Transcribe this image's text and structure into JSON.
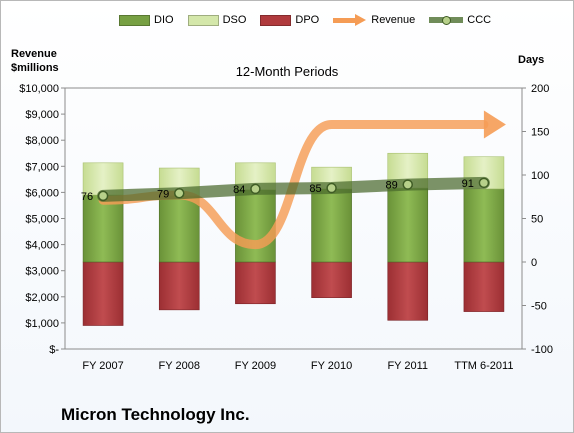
{
  "chart_data": {
    "type": "bar",
    "subtitle": "12-Month Periods",
    "footer_title": "Micron Technology Inc.",
    "left_axis_title": [
      "Revenue",
      "$millions"
    ],
    "right_axis_title": "Days",
    "categories": [
      "FY 2007",
      "FY 2008",
      "FY 2009",
      "FY 2010",
      "FY 2011",
      "TTM 6-2011"
    ],
    "left_axis": {
      "ylim": [
        0,
        10000
      ],
      "ticks": [
        "$-",
        "$1,000",
        "$2,000",
        "$3,000",
        "$4,000",
        "$5,000",
        "$6,000",
        "$7,000",
        "$8,000",
        "$9,000",
        "$10,000"
      ]
    },
    "right_axis": {
      "ylim": [
        -100,
        200
      ],
      "tick_values": [
        -100,
        -50,
        0,
        50,
        100,
        150,
        200
      ],
      "ticks": [
        "-100",
        "-50",
        "0",
        "50",
        "100",
        "150",
        "200"
      ]
    },
    "legend": [
      "DIO",
      "DSO",
      "DPO",
      "Revenue",
      "CCC"
    ],
    "series": [
      {
        "name": "DIO",
        "type": "stacked-bar",
        "axis": "right",
        "color": "#77a043",
        "values": [
          77,
          76,
          83,
          84,
          85,
          84
        ]
      },
      {
        "name": "DSO",
        "type": "stacked-bar",
        "axis": "right",
        "color": "#d4e7aa",
        "values": [
          37,
          32,
          31,
          25,
          40,
          37
        ]
      },
      {
        "name": "DPO",
        "type": "stacked-bar-negative",
        "axis": "right",
        "color": "#b03a3d",
        "values": [
          -73,
          -55,
          -48,
          -41,
          -67,
          -57
        ]
      },
      {
        "name": "Revenue",
        "type": "arrow-line",
        "axis": "left",
        "color": "#f59c55",
        "values": [
          5700,
          5900,
          4000,
          8600,
          8600,
          8600
        ]
      },
      {
        "name": "CCC",
        "type": "line",
        "axis": "right",
        "color": "#4c6f2f",
        "values": [
          76,
          79,
          84,
          85,
          89,
          91
        ]
      }
    ],
    "data_labels": [
      "76",
      "79",
      "84",
      "85",
      "89",
      "91"
    ],
    "grid": false
  }
}
